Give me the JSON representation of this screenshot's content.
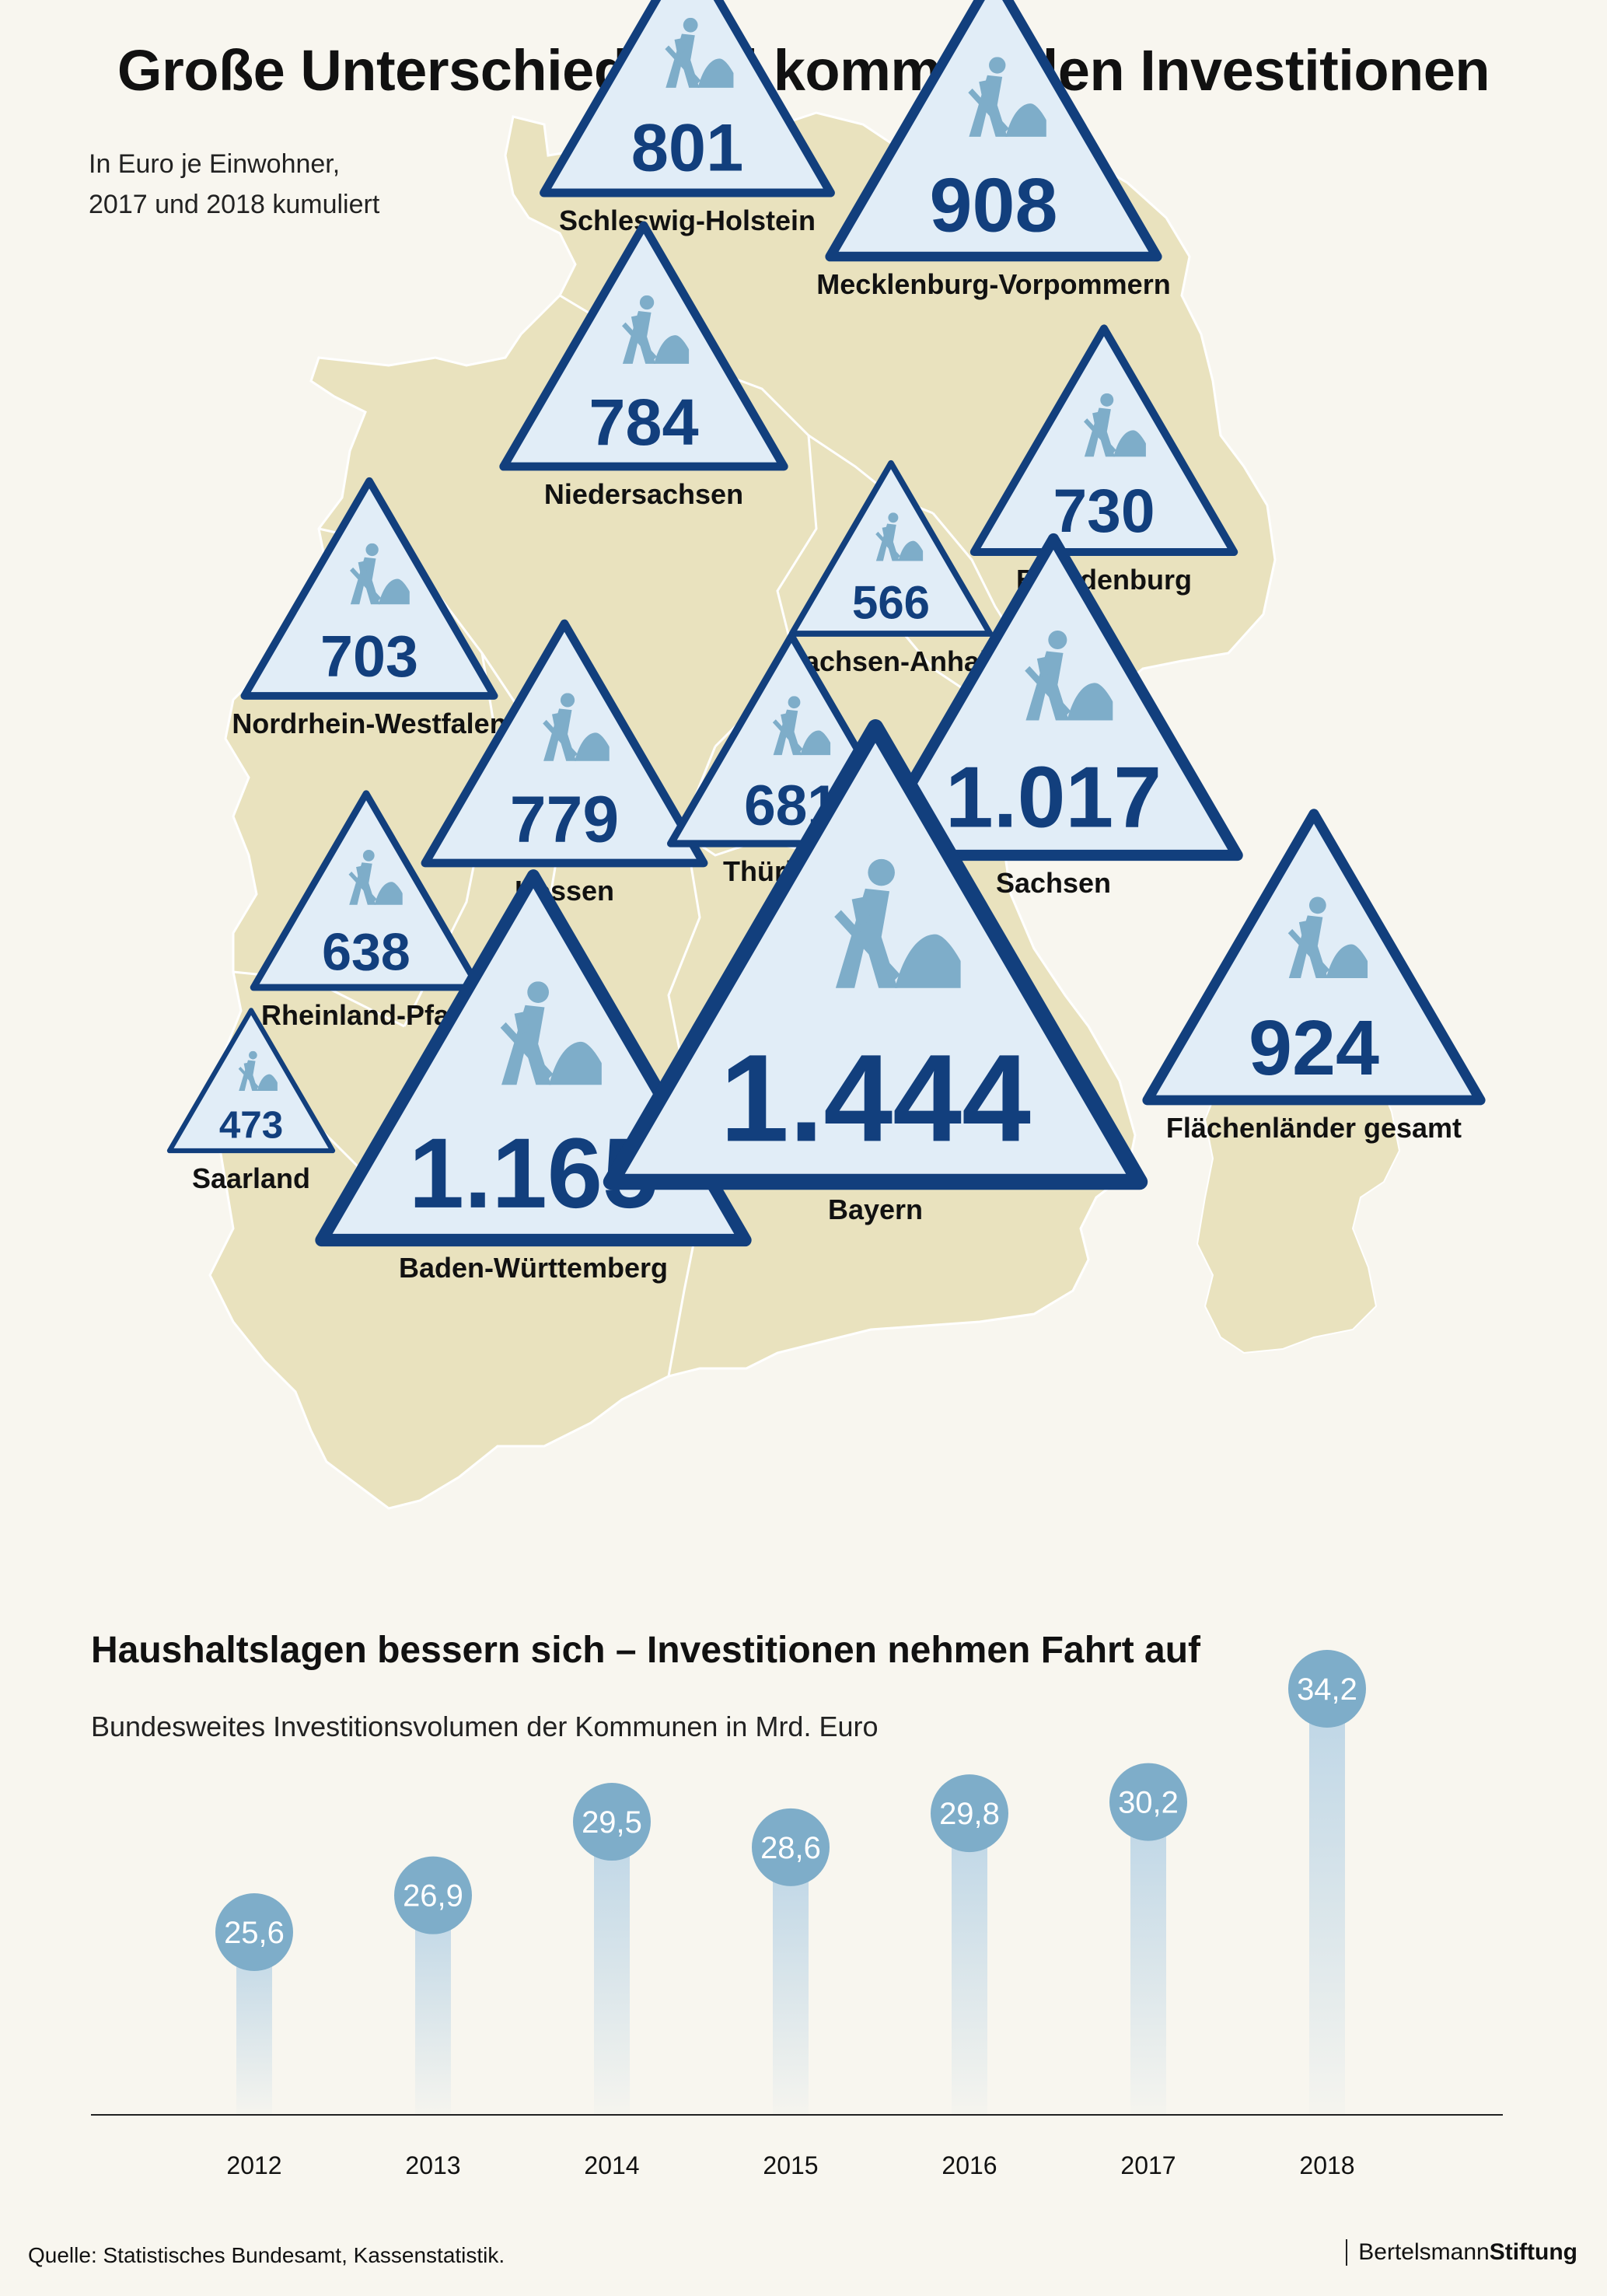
{
  "page": {
    "title": "Große Unterschiede bei kommunalen Investitionen",
    "subtitle_line1": "In Euro je Einwohner,",
    "subtitle_line2": "2017 und 2018 kumuliert"
  },
  "colors": {
    "background": "#f8f6ef",
    "map_fill": "#e9e2be",
    "map_border": "#ffffff",
    "triangle_stroke": "#123f7d",
    "triangle_fill": "#e1edf7",
    "triangle_text": "#123f7d",
    "worker_icon": "#7eadc9",
    "bubble": "#7eadc9",
    "stem": "#bcd5e6",
    "axis": "#222222"
  },
  "icon": "worker-digging-icon",
  "chart_data": [
    {
      "type": "table",
      "unit": "Euro je Einwohner, 2017 und 2018 kumuliert",
      "categories": [
        "Schleswig-Holstein",
        "Mecklenburg-Vorpommern",
        "Niedersachsen",
        "Brandenburg",
        "Sachsen-Anhalt",
        "Nordrhein-Westfalen",
        "Hessen",
        "Thüringen",
        "Sachsen",
        "Rheinland-Pfalz",
        "Saarland",
        "Baden-Württemberg",
        "Bayern",
        "Flächenländer gesamt"
      ],
      "values": [
        801,
        908,
        784,
        730,
        566,
        703,
        779,
        681,
        1017,
        638,
        473,
        1165,
        1444,
        924
      ],
      "value_labels": [
        "801",
        "908",
        "784",
        "730",
        "566",
        "703",
        "779",
        "681",
        "1.017",
        "638",
        "473",
        "1.165",
        "1.444",
        "924"
      ]
    },
    {
      "type": "bar",
      "title": "Haushaltslagen bessern sich – Investitionen nehmen Fahrt auf",
      "subtitle": "Bundesweites Investitionsvolumen der Kommunen in Mrd. Euro",
      "categories": [
        "2012",
        "2013",
        "2014",
        "2015",
        "2016",
        "2017",
        "2018"
      ],
      "values": [
        25.6,
        26.9,
        29.5,
        28.6,
        29.8,
        30.2,
        34.2
      ],
      "value_labels": [
        "25,6",
        "26,9",
        "29,5",
        "28,6",
        "29,8",
        "30,2",
        "34,2"
      ],
      "xlabel": "",
      "ylabel": "",
      "grid": false
    }
  ],
  "footer": {
    "source": "Quelle: Statistisches Bundesamt, Kassenstatistik.",
    "brand_regular": "Bertelsmann",
    "brand_bold": "Stiftung"
  }
}
